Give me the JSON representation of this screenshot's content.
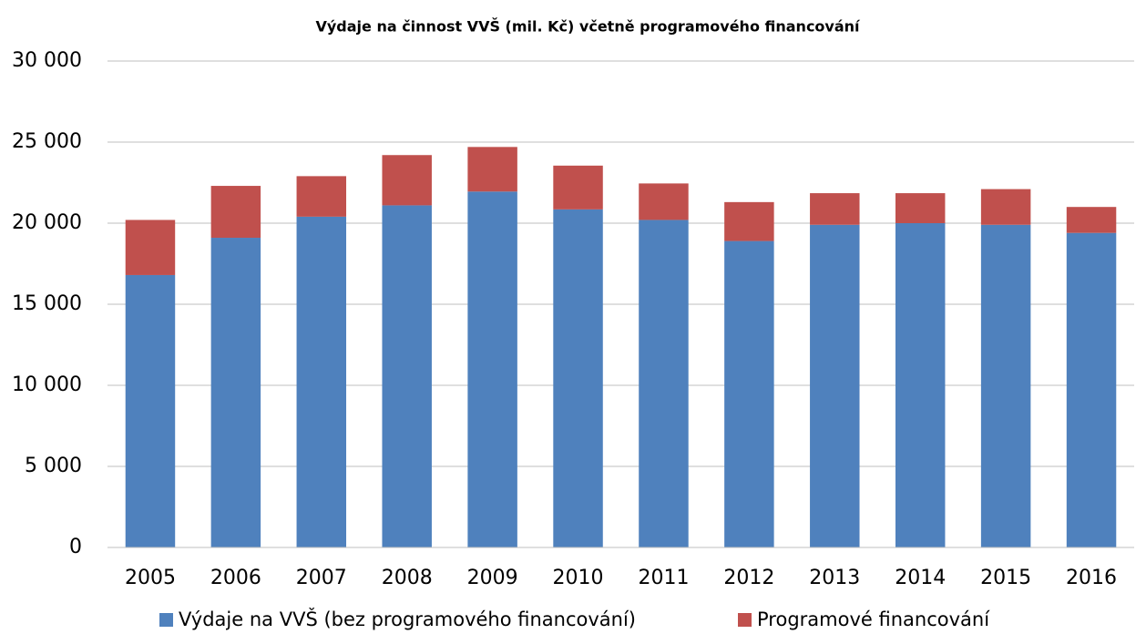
{
  "chart_data": {
    "type": "stacked_bar",
    "title": "Výdaje na činnost VVŠ (mil. Kč) včetně programového financování",
    "categories": [
      "2005",
      "2006",
      "2007",
      "2008",
      "2009",
      "2010",
      "2011",
      "2012",
      "2013",
      "2014",
      "2015",
      "2016"
    ],
    "series": [
      {
        "name": "Výdaje na VVŠ (bez programového financování)",
        "color": "#4f81bd",
        "values": [
          16800,
          19100,
          20400,
          21100,
          21950,
          20850,
          20200,
          18900,
          19900,
          20000,
          19900,
          19400
        ]
      },
      {
        "name": "Programové financování",
        "color": "#c0504d",
        "values": [
          3400,
          3200,
          2500,
          3100,
          2750,
          2700,
          2250,
          2400,
          1950,
          1850,
          2200,
          1600
        ]
      }
    ],
    "ylim": [
      0,
      30000
    ],
    "yticks": [
      0,
      {
        "value": 5000,
        "label": "5 000"
      },
      {
        "value": 10000,
        "label": "10 000"
      },
      {
        "value": 15000,
        "label": "15 000"
      },
      {
        "value": 20000,
        "label": "20 000"
      },
      {
        "value": 25000,
        "label": "25 000"
      },
      {
        "value": 30000,
        "label": "30 000"
      }
    ],
    "grid": true,
    "legend": "bottom"
  }
}
